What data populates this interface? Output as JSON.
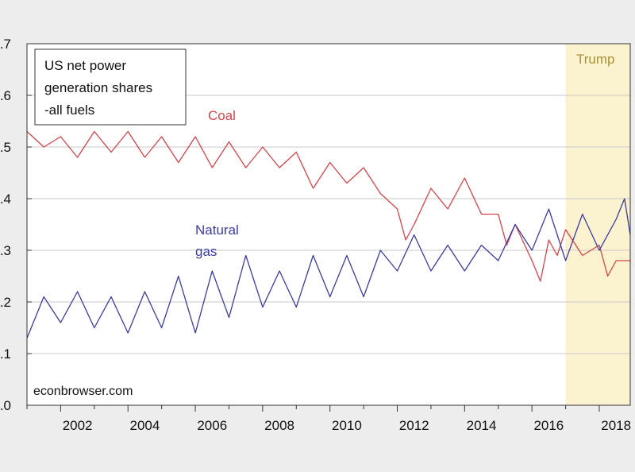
{
  "chart_data": {
    "type": "line",
    "title": "",
    "legend_box": [
      "US net power",
      "generation shares",
      "-all fuels"
    ],
    "xlabel": "",
    "ylabel": "",
    "xlim": [
      2001.0,
      2018.92
    ],
    "ylim": [
      0.0,
      0.7
    ],
    "x_ticks": [
      2002,
      2004,
      2006,
      2008,
      2010,
      2012,
      2014,
      2016,
      2018
    ],
    "x_tick_labels": [
      "2002",
      "2004",
      "2006",
      "2008",
      "2010",
      "2012",
      "2014",
      "2016",
      "2018"
    ],
    "y_ticks": [
      0.0,
      0.1,
      0.2,
      0.3,
      0.4,
      0.5,
      0.6,
      0.7
    ],
    "y_tick_labels": [
      ".0",
      ".1",
      ".2",
      ".3",
      ".4",
      ".5",
      ".6",
      ".7"
    ],
    "grid": "horizontal",
    "shaded_region": {
      "label": "Trump",
      "x_start": 2017.0,
      "x_end": 2018.92,
      "color": "#fbf2cf",
      "label_color": "#a89334"
    },
    "series": [
      {
        "name": "Coal",
        "color": "#d8434b",
        "x": [
          2001.0,
          2001.5,
          2002.0,
          2002.5,
          2003.0,
          2003.5,
          2004.0,
          2004.5,
          2005.0,
          2005.5,
          2006.0,
          2006.5,
          2007.0,
          2007.5,
          2008.0,
          2008.5,
          2009.0,
          2009.5,
          2010.0,
          2010.5,
          2011.0,
          2011.5,
          2012.0,
          2012.25,
          2012.5,
          2013.0,
          2013.5,
          2014.0,
          2014.5,
          2015.0,
          2015.25,
          2015.5,
          2016.0,
          2016.25,
          2016.5,
          2016.75,
          2017.0,
          2017.5,
          2018.0,
          2018.25,
          2018.5,
          2018.92
        ],
        "values": [
          0.53,
          0.5,
          0.52,
          0.48,
          0.53,
          0.49,
          0.53,
          0.48,
          0.52,
          0.47,
          0.52,
          0.46,
          0.51,
          0.46,
          0.5,
          0.46,
          0.49,
          0.42,
          0.47,
          0.43,
          0.46,
          0.41,
          0.38,
          0.32,
          0.35,
          0.42,
          0.38,
          0.44,
          0.37,
          0.37,
          0.31,
          0.35,
          0.28,
          0.24,
          0.32,
          0.29,
          0.34,
          0.29,
          0.31,
          0.25,
          0.28,
          0.28
        ]
      },
      {
        "name": "Natural gas",
        "color": "#3b3ba6",
        "x": [
          2001.0,
          2001.5,
          2002.0,
          2002.5,
          2003.0,
          2003.5,
          2004.0,
          2004.5,
          2005.0,
          2005.5,
          2006.0,
          2006.5,
          2007.0,
          2007.5,
          2008.0,
          2008.5,
          2009.0,
          2009.5,
          2010.0,
          2010.5,
          2011.0,
          2011.5,
          2012.0,
          2012.5,
          2013.0,
          2013.5,
          2014.0,
          2014.5,
          2015.0,
          2015.5,
          2016.0,
          2016.5,
          2017.0,
          2017.5,
          2018.0,
          2018.5,
          2018.75,
          2018.92
        ],
        "values": [
          0.13,
          0.21,
          0.16,
          0.22,
          0.15,
          0.21,
          0.14,
          0.22,
          0.15,
          0.25,
          0.14,
          0.26,
          0.17,
          0.29,
          0.19,
          0.26,
          0.19,
          0.29,
          0.21,
          0.29,
          0.21,
          0.3,
          0.26,
          0.33,
          0.26,
          0.31,
          0.26,
          0.31,
          0.28,
          0.35,
          0.3,
          0.38,
          0.28,
          0.37,
          0.3,
          0.36,
          0.4,
          0.33
        ]
      }
    ]
  },
  "labels": {
    "coal": "Coal",
    "natural_gas_line1": "Natural",
    "natural_gas_line2": "gas",
    "source": "econbrowser.com",
    "trump": "Trump"
  },
  "colors": {
    "coal": "#d8434b",
    "natural_gas": "#3b3ba6",
    "trump_shade": "#fbf2cf",
    "trump_label": "#a89334",
    "grid": "#c8c8c8",
    "plot_bg": "#ffffff",
    "page_bg": "#ededed"
  }
}
